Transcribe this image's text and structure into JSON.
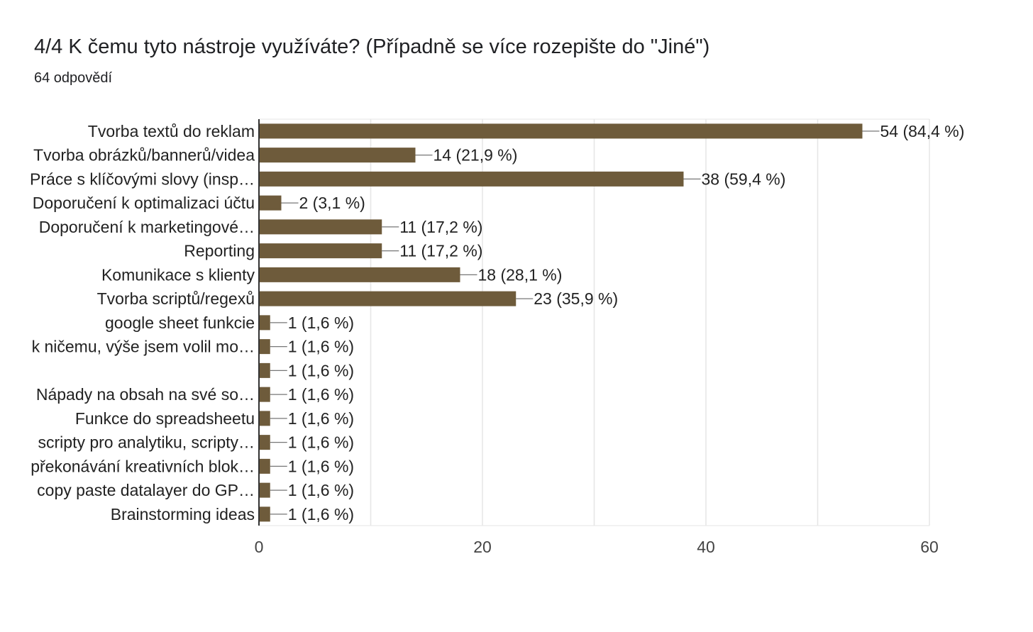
{
  "header": {
    "title": "4/4 K čemu tyto nástroje využíváte?  (Případně se více rozepište do \"Jiné\")",
    "subtitle": "64 odpovědí"
  },
  "colors": {
    "bar": "#6e5b3b",
    "grid": "#e6e6e6",
    "axis": "#333333",
    "leader": "#777777"
  },
  "chart_data": {
    "type": "bar",
    "orientation": "horizontal",
    "categories": [
      "Tvorba textů do reklam",
      "Tvorba obrázků/bannerů/videa",
      "Práce s klíčovými slovy (insp…",
      "Doporučení k optimalizaci účtu",
      "Doporučení k marketingové…",
      "Reporting",
      "Komunikace s klienty",
      "Tvorba scriptů/regexů",
      "google sheet funkcie",
      "k ničemu, výše jsem volil mo…",
      "",
      "Nápady na obsah na své so…",
      "Funkce do spreadsheetu",
      "scripty pro analytiku, scripty…",
      "překonávání kreativních blok…",
      "copy paste datalayer do GP…",
      "Brainstorming ideas"
    ],
    "values": [
      54,
      14,
      38,
      2,
      11,
      11,
      18,
      23,
      1,
      1,
      1,
      1,
      1,
      1,
      1,
      1,
      1
    ],
    "data_labels": [
      "54 (84,4 %)",
      "14 (21,9 %)",
      "38 (59,4 %)",
      "2 (3,1 %)",
      "11 (17,2 %)",
      "11 (17,2 %)",
      "18 (28,1 %)",
      "23 (35,9 %)",
      "1 (1,6 %)",
      "1 (1,6 %)",
      "1 (1,6 %)",
      "1 (1,6 %)",
      "1 (1,6 %)",
      "1 (1,6 %)",
      "1 (1,6 %)",
      "1 (1,6 %)",
      "1 (1,6 %)"
    ],
    "xlim": [
      0,
      60
    ],
    "x_ticks": [
      0,
      20,
      40,
      60
    ],
    "x_tick_labels": [
      "0",
      "20",
      "40",
      "60"
    ],
    "grid": true,
    "legend": "none"
  }
}
